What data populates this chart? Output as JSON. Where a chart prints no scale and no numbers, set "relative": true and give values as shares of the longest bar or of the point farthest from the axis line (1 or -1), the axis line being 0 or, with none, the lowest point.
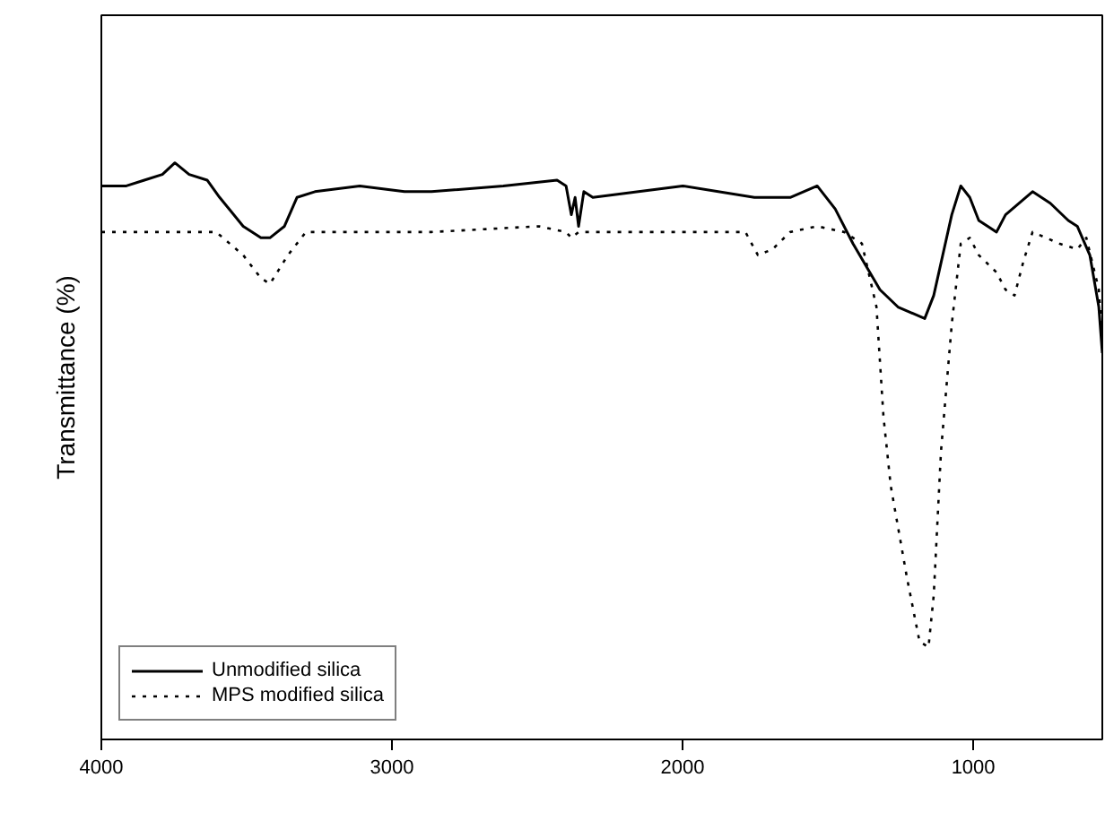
{
  "chart_data": {
    "type": "line",
    "relative": true,
    "ylabel": "Transmittance (%)",
    "xlim": [
      4000,
      556
    ],
    "xticks": [
      4000,
      3000,
      2000,
      1000
    ],
    "legend": "bottom left",
    "grid": false,
    "series": [
      {
        "name": "Unmodified silica",
        "color": "#000000",
        "line_style": "solid",
        "x": [
          4000,
          3914,
          3852,
          3790,
          3747,
          3698,
          3636,
          3593,
          3512,
          3451,
          3420,
          3370,
          3327,
          3265,
          3111,
          2957,
          2864,
          2617,
          2432,
          2401,
          2383,
          2370,
          2358,
          2340,
          2309,
          2000,
          1753,
          1630,
          1537,
          1475,
          1414,
          1321,
          1259,
          1167,
          1136,
          1074,
          1043,
          1012,
          981,
          920,
          889,
          796,
          735,
          673,
          642,
          599,
          568,
          556
        ],
        "values": [
          0.96,
          0.96,
          0.97,
          0.98,
          1.0,
          0.98,
          0.97,
          0.94,
          0.89,
          0.87,
          0.87,
          0.89,
          0.94,
          0.95,
          0.96,
          0.95,
          0.95,
          0.96,
          0.97,
          0.96,
          0.91,
          0.94,
          0.89,
          0.95,
          0.94,
          0.96,
          0.94,
          0.94,
          0.96,
          0.92,
          0.86,
          0.78,
          0.75,
          0.73,
          0.77,
          0.91,
          0.96,
          0.94,
          0.9,
          0.88,
          0.91,
          0.95,
          0.93,
          0.9,
          0.89,
          0.84,
          0.75,
          0.67
        ]
      },
      {
        "name": "MPS modified silica",
        "color": "#000000",
        "line_style": "dotted",
        "x": [
          4000,
          3790,
          3605,
          3512,
          3451,
          3420,
          3358,
          3296,
          3111,
          2864,
          2494,
          2401,
          2383,
          2358,
          2247,
          2000,
          1784,
          1741,
          1691,
          1630,
          1537,
          1444,
          1383,
          1333,
          1309,
          1284,
          1228,
          1185,
          1154,
          1136,
          1111,
          1074,
          1043,
          1012,
          981,
          920,
          889,
          858,
          827,
          796,
          704,
          642,
          611,
          568,
          556
        ],
        "values": [
          0.88,
          0.88,
          0.88,
          0.84,
          0.8,
          0.79,
          0.84,
          0.88,
          0.88,
          0.88,
          0.89,
          0.88,
          0.87,
          0.88,
          0.88,
          0.88,
          0.88,
          0.84,
          0.85,
          0.88,
          0.89,
          0.88,
          0.86,
          0.75,
          0.56,
          0.44,
          0.28,
          0.17,
          0.16,
          0.25,
          0.5,
          0.72,
          0.86,
          0.87,
          0.84,
          0.81,
          0.78,
          0.77,
          0.83,
          0.88,
          0.86,
          0.85,
          0.87,
          0.78,
          0.69
        ]
      }
    ]
  }
}
